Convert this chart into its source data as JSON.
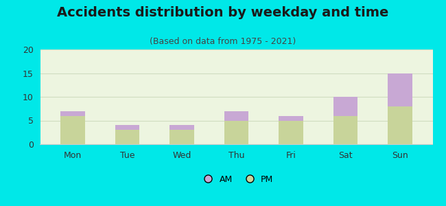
{
  "categories": [
    "Mon",
    "Tue",
    "Wed",
    "Thu",
    "Fri",
    "Sat",
    "Sun"
  ],
  "pm_values": [
    6,
    3,
    3,
    5,
    5,
    6,
    8
  ],
  "am_values": [
    1,
    1,
    1,
    2,
    1,
    4,
    7
  ],
  "am_color": "#c8a8d4",
  "pm_color": "#c8d49a",
  "title": "Accidents distribution by weekday and time",
  "subtitle": "(Based on data from 1975 - 2021)",
  "ylim": [
    0,
    20
  ],
  "yticks": [
    0,
    5,
    10,
    15,
    20
  ],
  "background_color": "#00e8e8",
  "plot_bg": "#edf5e0",
  "title_fontsize": 14,
  "subtitle_fontsize": 9,
  "tick_fontsize": 9,
  "legend_am_label": "AM",
  "legend_pm_label": "PM",
  "bar_width": 0.45,
  "grid_color": "#d0ddc0",
  "spine_color": "#cccccc"
}
